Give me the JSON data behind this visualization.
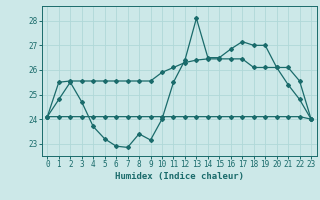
{
  "title": "",
  "xlabel": "Humidex (Indice chaleur)",
  "bg_color": "#cce8e8",
  "grid_color": "#b0d8d8",
  "line_color": "#1a6b6b",
  "x": [
    0,
    1,
    2,
    3,
    4,
    5,
    6,
    7,
    8,
    9,
    10,
    11,
    12,
    13,
    14,
    15,
    16,
    17,
    18,
    19,
    20,
    21,
    22,
    23
  ],
  "line1": [
    24.1,
    24.8,
    25.5,
    24.7,
    23.7,
    23.2,
    22.9,
    22.85,
    23.4,
    23.15,
    24.0,
    25.5,
    26.4,
    28.1,
    26.5,
    26.5,
    26.85,
    27.15,
    27.0,
    27.0,
    26.1,
    25.4,
    24.8,
    24.0
  ],
  "line2": [
    24.1,
    25.5,
    25.55,
    25.55,
    25.55,
    25.55,
    25.55,
    25.55,
    25.55,
    25.55,
    25.9,
    26.1,
    26.3,
    26.4,
    26.45,
    26.45,
    26.45,
    26.45,
    26.1,
    26.1,
    26.1,
    26.1,
    25.55,
    24.0
  ],
  "line3": [
    24.1,
    24.1,
    24.1,
    24.1,
    24.1,
    24.1,
    24.1,
    24.1,
    24.1,
    24.1,
    24.1,
    24.1,
    24.1,
    24.1,
    24.1,
    24.1,
    24.1,
    24.1,
    24.1,
    24.1,
    24.1,
    24.1,
    24.1,
    24.0
  ],
  "ylim": [
    22.5,
    28.6
  ],
  "yticks": [
    23,
    24,
    25,
    26,
    27,
    28
  ]
}
